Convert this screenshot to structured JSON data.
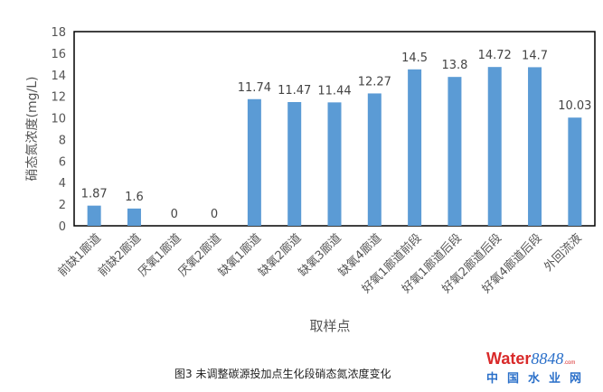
{
  "chart_data": {
    "type": "bar",
    "title": "",
    "xlabel": "取样点",
    "ylabel": "硝态氮浓度(mg/L)",
    "ylim": [
      0,
      18
    ],
    "yticks": [
      0,
      2,
      4,
      6,
      8,
      10,
      12,
      14,
      16,
      18
    ],
    "grid": false,
    "categories": [
      "前缺1廊道",
      "前缺2廊道",
      "厌氧1廊道",
      "厌氧2廊道",
      "缺氧1廊道",
      "缺氧2廊道",
      "缺氧3廊道",
      "缺氧4廊道",
      "好氧1廊道前段",
      "好氧1廊道后段",
      "好氧2廊道后段",
      "好氧4廊道后段",
      "外回流液"
    ],
    "values": [
      1.87,
      1.6,
      0,
      0,
      11.74,
      11.47,
      11.44,
      12.27,
      14.5,
      13.8,
      14.72,
      14.7,
      10.03
    ],
    "labels": [
      "1.87",
      "1.6",
      "0",
      "0",
      "11.74",
      "11.47",
      "11.44",
      "12.27",
      "14.5",
      "13.8",
      "14.72",
      "14.7",
      "10.03"
    ],
    "bar_color": "#5b9bd5"
  },
  "caption": "图3 未调整碳源投加点生化段硝态氮浓度变化",
  "watermark": {
    "top": "Water",
    "num": "8848",
    "com": ".com",
    "bottom": "中国水业网"
  }
}
